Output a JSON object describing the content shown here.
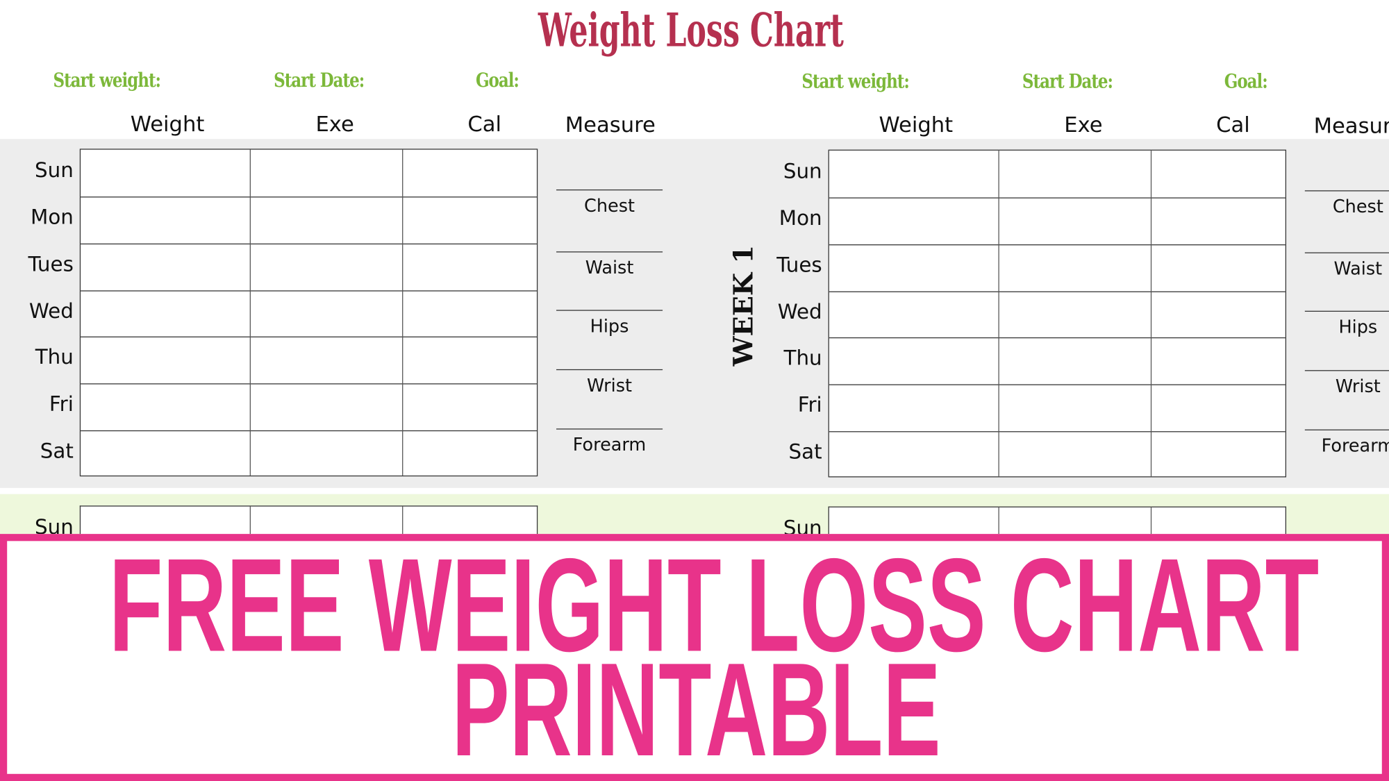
{
  "title": "Weight Loss Chart",
  "colors": {
    "title": "#b5304f",
    "label_green": "#7cb83a",
    "banner_pink": "#e8338a",
    "band_gray": "#ededed",
    "band_green": "#eef8dc"
  },
  "panels": [
    {
      "fields": {
        "start_weight": "Start weight:",
        "start_date": "Start Date:",
        "goal": "Goal:"
      },
      "columns": [
        "Weight",
        "Exe",
        "Cal"
      ],
      "measure_header": "Measure",
      "week_label": "WEEK 1",
      "days": [
        "Sun",
        "Mon",
        "Tues",
        "Wed",
        "Thu",
        "Fri",
        "Sat"
      ],
      "measurements": [
        "Chest",
        "Waist",
        "Hips",
        "Wrist",
        "Forearm"
      ],
      "next_week_first_day": "Sun"
    },
    {
      "fields": {
        "start_weight": "Start weight:",
        "start_date": "Start Date:",
        "goal": "Goal:"
      },
      "columns": [
        "Weight",
        "Exe",
        "Cal"
      ],
      "measure_header": "Measure",
      "week_label": "WEEK 1",
      "days": [
        "Sun",
        "Mon",
        "Tues",
        "Wed",
        "Thu",
        "Fri",
        "Sat"
      ],
      "measurements": [
        "Chest",
        "Waist",
        "Hips",
        "Wrist",
        "Forearm"
      ],
      "next_week_first_day": "Sun"
    }
  ],
  "banner": {
    "line1": "FREE WEIGHT LOSS CHART",
    "line2": "PRINTABLE"
  }
}
